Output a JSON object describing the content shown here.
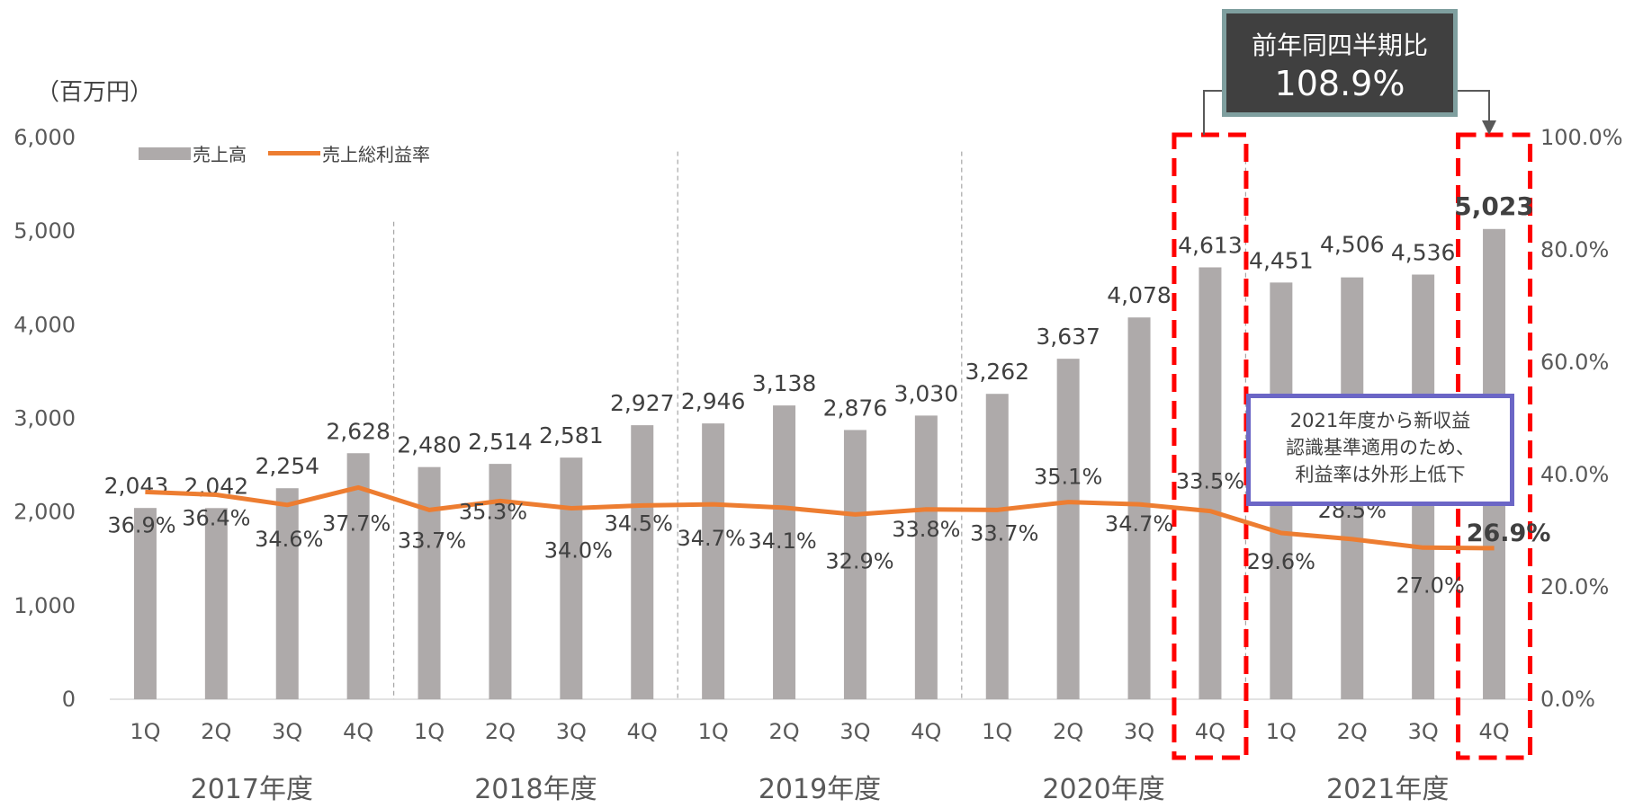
{
  "unit_label": "（百万円）",
  "legend": {
    "bar_label": "売上高",
    "line_label": "売上総利益率"
  },
  "yoy_box": {
    "title": "前年同四半期比",
    "value": "108.9%"
  },
  "note_box": {
    "lines": [
      "2021年度から新収益",
      "認識基準適用のため、",
      "利益率は外形上低下"
    ]
  },
  "colors": {
    "bar": "#aeaaaa",
    "line": "#ed7d31",
    "highlight": "#ff0000",
    "text": "#595959"
  },
  "chart_data": {
    "type": "bar",
    "categories": [
      "1Q",
      "2Q",
      "3Q",
      "4Q",
      "1Q",
      "2Q",
      "3Q",
      "4Q",
      "1Q",
      "2Q",
      "3Q",
      "4Q",
      "1Q",
      "2Q",
      "3Q",
      "4Q",
      "1Q",
      "2Q",
      "3Q",
      "4Q"
    ],
    "groups": [
      "2017年度",
      "2018年度",
      "2019年度",
      "2020年度",
      "2021年度"
    ],
    "series": [
      {
        "name": "売上高",
        "type": "bar",
        "axis": "left",
        "values": [
          2043,
          2042,
          2254,
          2628,
          2480,
          2514,
          2581,
          2927,
          2946,
          3138,
          2876,
          3030,
          3262,
          3637,
          4078,
          4613,
          4451,
          4506,
          4536,
          5023
        ],
        "labels": [
          "2,043",
          "2,042",
          "2,254",
          "2,628",
          "2,480",
          "2,514",
          "2,581",
          "2,927",
          "2,946",
          "3,138",
          "2,876",
          "3,030",
          "3,262",
          "3,637",
          "4,078",
          "4,613",
          "4,451",
          "4,506",
          "4,536",
          "5,023"
        ]
      },
      {
        "name": "売上総利益率",
        "type": "line",
        "axis": "right",
        "values": [
          36.9,
          36.4,
          34.6,
          37.7,
          33.7,
          35.3,
          34.0,
          34.5,
          34.7,
          34.1,
          32.9,
          33.8,
          33.7,
          35.1,
          34.7,
          33.5,
          29.6,
          28.5,
          27.0,
          26.9
        ],
        "labels": [
          "36.9%",
          "36.4%",
          "34.6%",
          "37.7%",
          "33.7%",
          "35.3%",
          "34.0%",
          "34.5%",
          "34.7%",
          "34.1%",
          "32.9%",
          "33.8%",
          "33.7%",
          "35.1%",
          "34.7%",
          "33.5%",
          "29.6%",
          "28.5%",
          "27.0%",
          "26.9%"
        ]
      }
    ],
    "y_left": {
      "min": 0,
      "max": 6000,
      "ticks": [
        "0",
        "1,000",
        "2,000",
        "3,000",
        "4,000",
        "5,000",
        "6,000"
      ]
    },
    "y_right": {
      "min": 0,
      "max": 100,
      "ticks": [
        "0.0%",
        "20.0%",
        "40.0%",
        "60.0%",
        "80.0%",
        "100.0%"
      ]
    },
    "highlighted_indices": [
      15,
      19
    ],
    "bold_label_indices": [
      19
    ]
  }
}
